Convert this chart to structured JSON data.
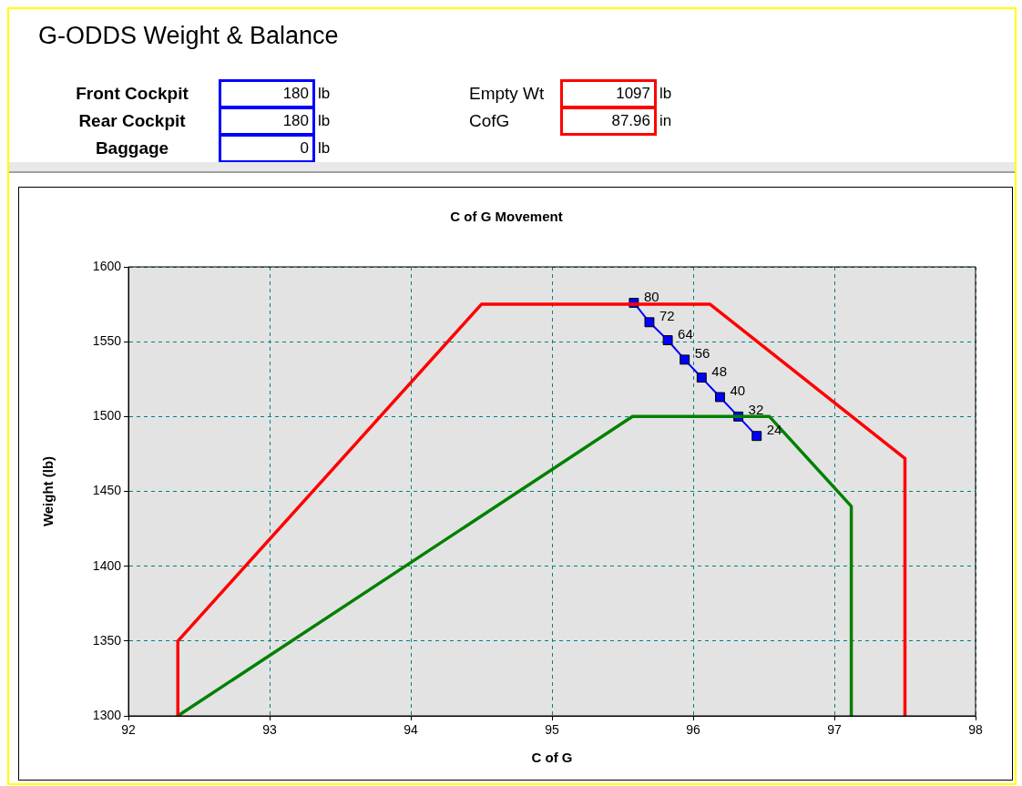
{
  "chart_data": {
    "type": "line",
    "title": "G-ODDS Weight & Balance",
    "subtitle": "C of G Movement",
    "xlabel": "C of G",
    "ylabel": "Weight (lb)",
    "annotations": [
      "Front Cockpit",
      "180",
      "lb",
      "Rear Cockpit",
      "180",
      "lb",
      "Baggage",
      "0",
      "lb",
      "Empty Wt",
      "1097",
      "lb",
      "CofG",
      "87.96",
      "in",
      {
        "text": "80",
        "x": 95.58,
        "y": 1576
      },
      {
        "text": "72",
        "x": 95.69,
        "y": 1563
      },
      {
        "text": "64",
        "x": 95.82,
        "y": 1551
      },
      {
        "text": "56",
        "x": 95.94,
        "y": 1538
      },
      {
        "text": "48",
        "x": 96.06,
        "y": 1526
      },
      {
        "text": "40",
        "x": 96.19,
        "y": 1513
      },
      {
        "text": "32",
        "x": 96.32,
        "y": 1500
      },
      {
        "text": "24",
        "x": 96.45,
        "y": 1487
      }
    ],
    "xlim": [
      92,
      98
    ],
    "xticks": [
      92,
      93,
      94,
      95,
      96,
      97,
      98
    ],
    "ylim": [
      1300,
      1600
    ],
    "yticks": [
      1300,
      1350,
      1400,
      1450,
      1500,
      1550,
      1600
    ],
    "grid": true,
    "legend": false,
    "series": [
      {
        "color": "#ff0000",
        "marker": "none",
        "x": [
          92.35,
          92.35,
          94.5,
          96.12,
          97.5,
          97.5
        ],
        "values": [
          1300,
          1350,
          1575,
          1575,
          1472,
          1300
        ]
      },
      {
        "color": "#008000",
        "marker": "none",
        "x": [
          92.35,
          95.57,
          96.54,
          97.12,
          97.12
        ],
        "values": [
          1300,
          1500,
          1500,
          1440,
          1300
        ]
      },
      {
        "color": "#0000ff",
        "marker": "square",
        "x": [
          95.58,
          95.69,
          95.82,
          95.94,
          96.06,
          96.19,
          96.32,
          96.45
        ],
        "values": [
          1576,
          1563,
          1551,
          1538,
          1526,
          1513,
          1500,
          1487
        ]
      }
    ]
  }
}
